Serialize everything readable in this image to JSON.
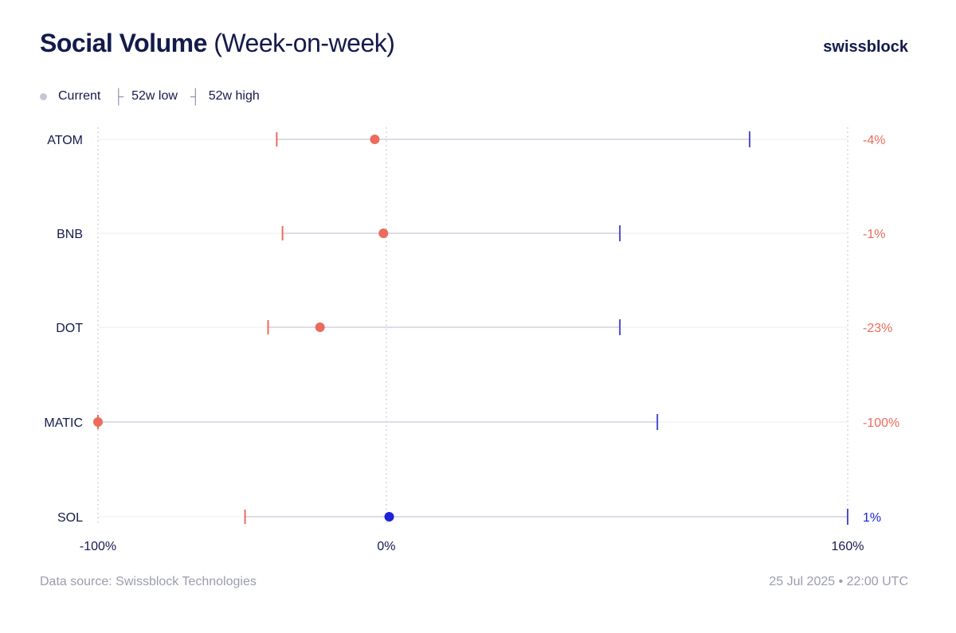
{
  "header": {
    "title_bold": "Social Volume",
    "title_light": "(Week-on-week)",
    "brand": "swissblock"
  },
  "legend": {
    "current": "Current",
    "low": "52w low",
    "high": "52w high"
  },
  "footer": {
    "source": "Data source: Swissblock Technologies",
    "timestamp": "25 Jul 2025 • 22:00 UTC"
  },
  "colors": {
    "negative": "#eb6b5c",
    "positive": "#1c22d6",
    "high_tick": "#4a4ed0",
    "range_line": "#dcdde6",
    "grid": "#c9cad6",
    "text": "#141a4c",
    "muted": "#9a9caf"
  },
  "chart_data": {
    "type": "range-dot",
    "xlim": [
      -100,
      160
    ],
    "x_ticks": [
      {
        "value": -100,
        "label": "-100%"
      },
      {
        "value": 0,
        "label": "0%"
      },
      {
        "value": 160,
        "label": "160%"
      }
    ],
    "grid_vertical": [
      -100,
      0,
      160
    ],
    "rows": [
      {
        "label": "ATOM",
        "low": -38,
        "current": -4,
        "high": 126,
        "value_label": "-4%"
      },
      {
        "label": "BNB",
        "low": -36,
        "current": -1,
        "high": 81,
        "value_label": "-1%"
      },
      {
        "label": "DOT",
        "low": -41,
        "current": -23,
        "high": 81,
        "value_label": "-23%"
      },
      {
        "label": "MATIC",
        "low": -100,
        "current": -100,
        "high": 94,
        "value_label": "-100%"
      },
      {
        "label": "SOL",
        "low": -49,
        "current": 1,
        "high": 160,
        "value_label": "1%"
      }
    ]
  }
}
